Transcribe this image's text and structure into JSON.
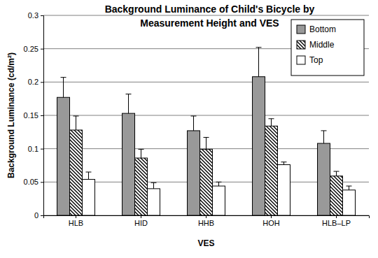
{
  "chart_data": {
    "type": "bar",
    "title": "Background Luminance of Child's Bicycle by\nMeasurement Height and VES",
    "x_label": "VES",
    "y_label": "Background Luminance (cd/m²)",
    "categories": [
      "HLB",
      "HID",
      "HHB",
      "HOH",
      "HLB–LP"
    ],
    "series": [
      {
        "name": "Bottom",
        "color": "#999999",
        "values": [
          0.177,
          0.153,
          0.127,
          0.208,
          0.108
        ],
        "errors": [
          0.03,
          0.029,
          0.022,
          0.044,
          0.019
        ]
      },
      {
        "name": "Middle",
        "color": "#000000",
        "marker": "hatch",
        "values": [
          0.128,
          0.086,
          0.099,
          0.134,
          0.059
        ],
        "errors": [
          0.021,
          0.013,
          0.018,
          0.011,
          0.007
        ]
      },
      {
        "name": "Top",
        "color": "#ffffff",
        "values": [
          0.054,
          0.04,
          0.044,
          0.076,
          0.038
        ],
        "errors": [
          0.011,
          0.009,
          0.006,
          0.004,
          0.006
        ]
      }
    ],
    "ylim": [
      0,
      0.3
    ],
    "yticks": [
      0,
      0.05,
      0.1,
      0.15,
      0.2,
      0.25,
      0.3
    ],
    "grid": true,
    "legend": "top-right"
  }
}
